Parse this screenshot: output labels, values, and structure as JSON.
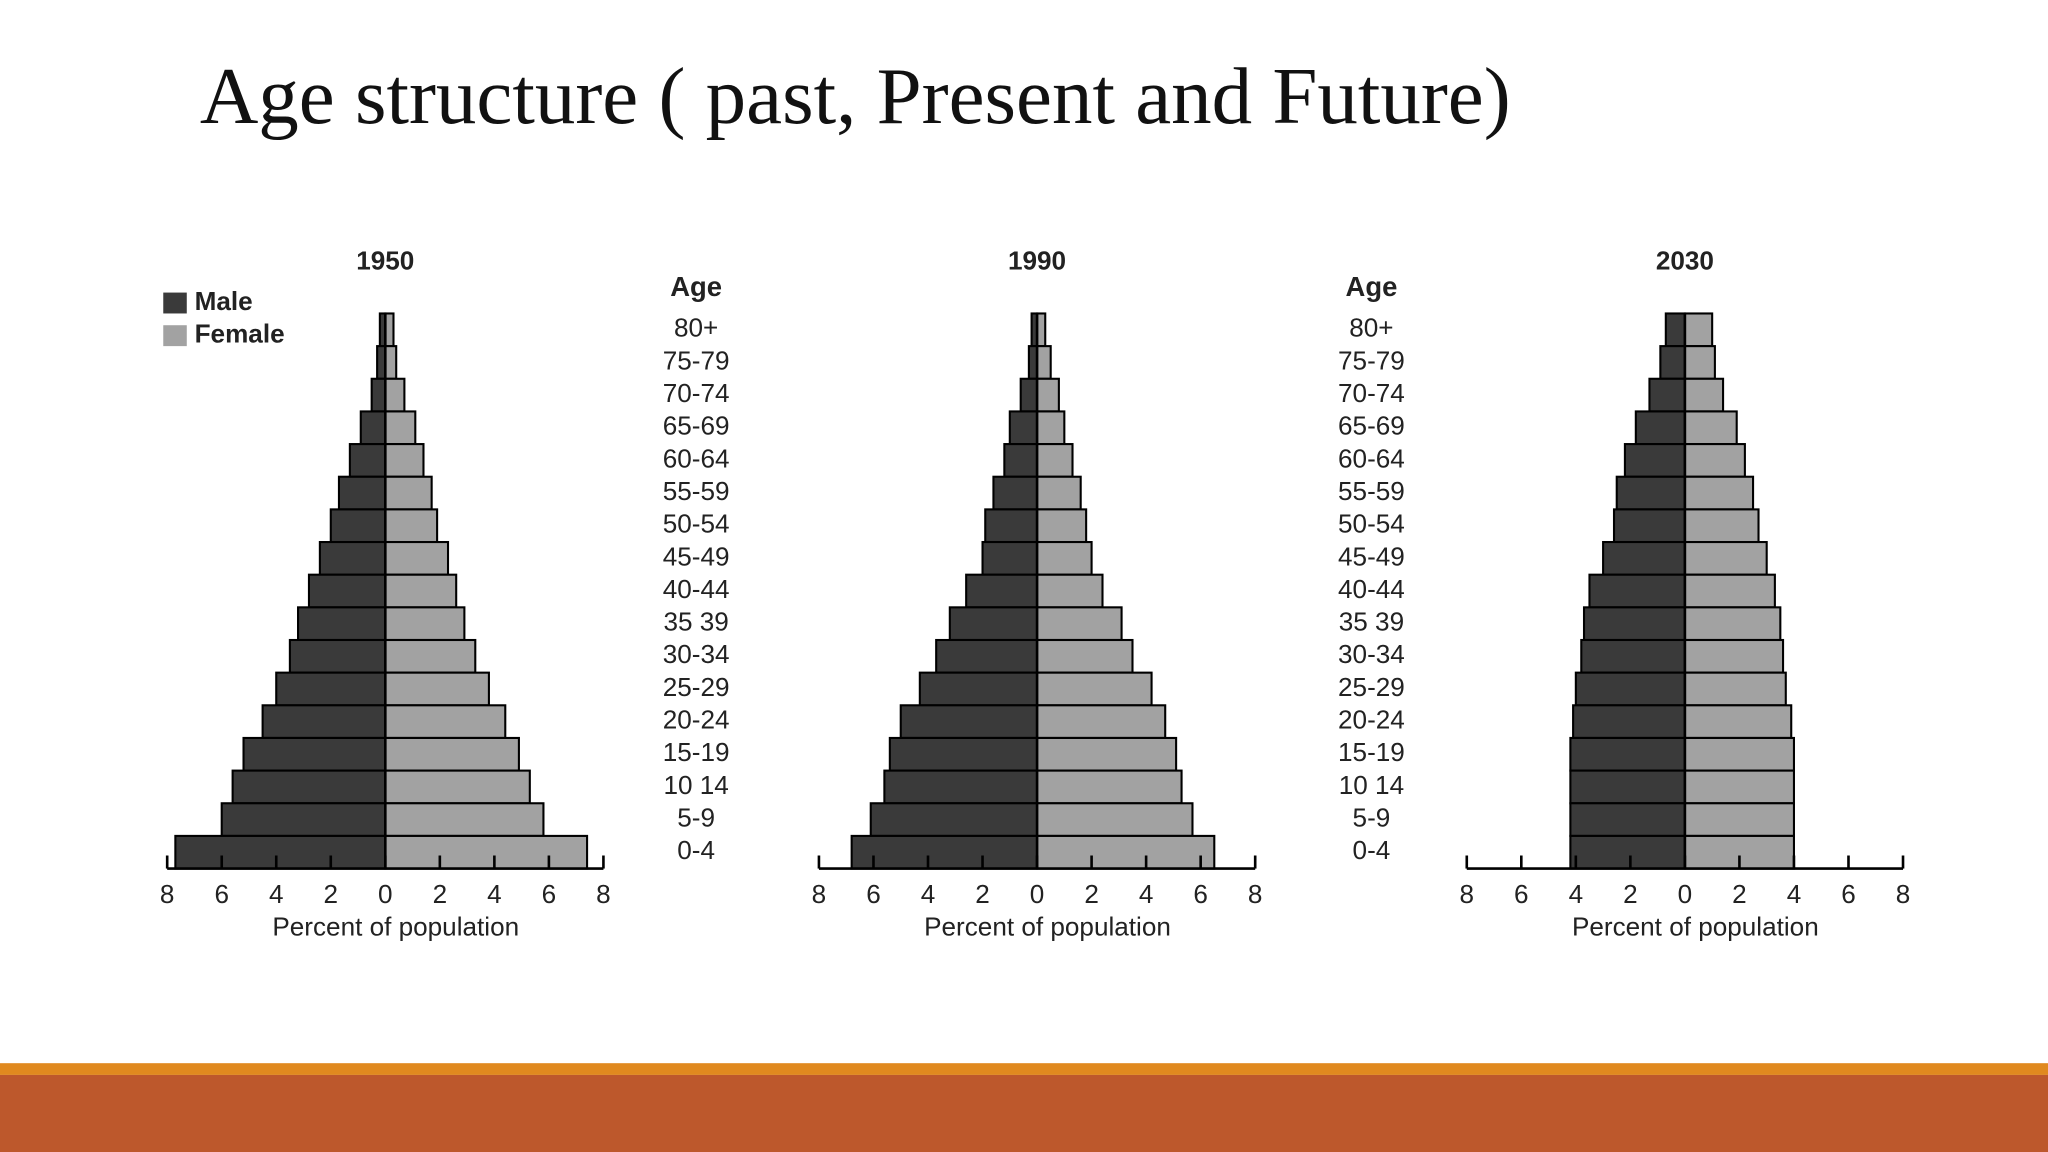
{
  "slide_title": "Age structure ( past, Present and Future)",
  "chart_data": [
    {
      "type": "pyramid",
      "title": "1950",
      "ylabel": "Age",
      "xlabel": "Percent of population",
      "legend": "upper left",
      "categories": [
        "80+",
        "75-79",
        "70-74",
        "65-69",
        "60-64",
        "55-59",
        "50-54",
        "45-49",
        "40-44",
        "35 39",
        "30-34",
        "25-29",
        "20-24",
        "15-19",
        "10 14",
        "5-9",
        "0-4"
      ],
      "series": [
        {
          "name": "Male",
          "color": "#3a3a3a",
          "values": [
            0.2,
            0.3,
            0.5,
            0.9,
            1.3,
            1.7,
            2.0,
            2.4,
            2.8,
            3.2,
            3.5,
            4.0,
            4.5,
            5.2,
            5.6,
            6.0,
            7.7
          ]
        },
        {
          "name": "Female",
          "color": "#a2a2a2",
          "values": [
            0.3,
            0.4,
            0.7,
            1.1,
            1.4,
            1.7,
            1.9,
            2.3,
            2.6,
            2.9,
            3.3,
            3.8,
            4.4,
            4.9,
            5.3,
            5.8,
            7.4
          ]
        }
      ],
      "xlim": [
        -8,
        8
      ],
      "xticks": [
        {
          "value": -8,
          "label": "8"
        },
        {
          "value": -6,
          "label": "6"
        },
        {
          "value": -4,
          "label": "4"
        },
        {
          "value": -2,
          "label": "2"
        },
        0,
        2,
        4,
        6,
        8
      ]
    },
    {
      "type": "pyramid",
      "title": "1990",
      "ylabel": "Age",
      "xlabel": "Percent of population",
      "categories": [
        "80+",
        "75-79",
        "70-74",
        "65-69",
        "60-64",
        "55-59",
        "50-54",
        "45-49",
        "40-44",
        "35 39",
        "30-34",
        "25-29",
        "20-24",
        "15-19",
        "10 14",
        "5-9",
        "0-4"
      ],
      "series": [
        {
          "color": "#3a3a3a",
          "values": [
            0.2,
            0.3,
            0.6,
            1.0,
            1.2,
            1.6,
            1.9,
            2.0,
            2.6,
            3.2,
            3.7,
            4.3,
            5.0,
            5.4,
            5.6,
            6.1,
            6.8
          ]
        },
        {
          "color": "#a2a2a2",
          "values": [
            0.3,
            0.5,
            0.8,
            1.0,
            1.3,
            1.6,
            1.8,
            2.0,
            2.4,
            3.1,
            3.5,
            4.2,
            4.7,
            5.1,
            5.3,
            5.7,
            6.5
          ]
        }
      ],
      "xlim": [
        -8,
        8
      ],
      "xticks": [
        {
          "value": -8,
          "label": "8"
        },
        {
          "value": -6,
          "label": "6"
        },
        {
          "value": -4,
          "label": "4"
        },
        {
          "value": -2,
          "label": "2"
        },
        0,
        2,
        4,
        6,
        8
      ]
    },
    {
      "type": "pyramid",
      "title": "2030",
      "xlabel": "Percent of population",
      "series": [
        {
          "color": "#3a3a3a",
          "values": [
            0.7,
            0.9,
            1.3,
            1.8,
            2.2,
            2.5,
            2.6,
            3.0,
            3.5,
            3.7,
            3.8,
            4.0,
            4.1,
            4.2,
            4.2,
            4.2,
            4.2
          ]
        },
        {
          "color": "#a2a2a2",
          "values": [
            1.0,
            1.1,
            1.4,
            1.9,
            2.2,
            2.5,
            2.7,
            3.0,
            3.3,
            3.5,
            3.6,
            3.7,
            3.9,
            4.0,
            4.0,
            4.0,
            4.0
          ]
        }
      ],
      "xlim": [
        -8,
        8
      ],
      "xticks": [
        {
          "value": -8,
          "label": "8"
        },
        {
          "value": -6,
          "label": "6"
        },
        {
          "value": -4,
          "label": "4"
        },
        {
          "value": -2,
          "label": "2"
        },
        0,
        2,
        4,
        6,
        8
      ]
    }
  ]
}
